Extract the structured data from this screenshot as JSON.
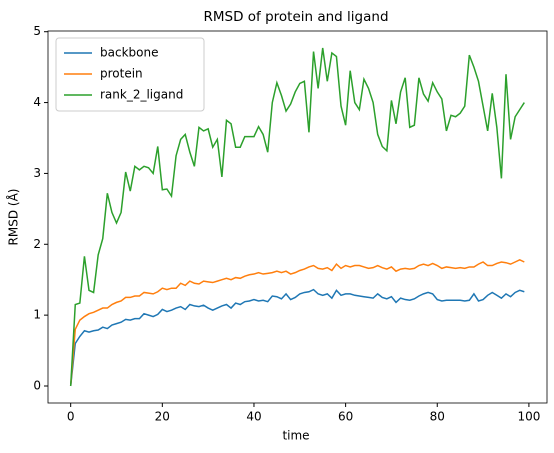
{
  "chart_data": {
    "type": "line",
    "title": "RMSD of protein and ligand",
    "xlabel": "time",
    "ylabel": "RMSD (Å)",
    "x": [
      0,
      1,
      2,
      3,
      4,
      5,
      6,
      7,
      8,
      9,
      10,
      11,
      12,
      13,
      14,
      15,
      16,
      17,
      18,
      19,
      20,
      21,
      22,
      23,
      24,
      25,
      26,
      27,
      28,
      29,
      30,
      31,
      32,
      33,
      34,
      35,
      36,
      37,
      38,
      39,
      40,
      41,
      42,
      43,
      44,
      45,
      46,
      47,
      48,
      49,
      50,
      51,
      52,
      53,
      54,
      55,
      56,
      57,
      58,
      59,
      60,
      61,
      62,
      63,
      64,
      65,
      66,
      67,
      68,
      69,
      70,
      71,
      72,
      73,
      74,
      75,
      76,
      77,
      78,
      79,
      80,
      81,
      82,
      83,
      84,
      85,
      86,
      87,
      88,
      89,
      90,
      91,
      92,
      93,
      94,
      95,
      96,
      97,
      98,
      99
    ],
    "series": [
      {
        "name": "backbone",
        "color": "#1f77b4",
        "values": [
          0,
          0.6,
          0.7,
          0.78,
          0.76,
          0.78,
          0.79,
          0.83,
          0.81,
          0.86,
          0.88,
          0.9,
          0.94,
          0.93,
          0.95,
          0.95,
          1.02,
          1.0,
          0.98,
          1.01,
          1.08,
          1.05,
          1.07,
          1.1,
          1.12,
          1.08,
          1.15,
          1.13,
          1.12,
          1.14,
          1.1,
          1.07,
          1.1,
          1.13,
          1.15,
          1.1,
          1.17,
          1.15,
          1.19,
          1.2,
          1.22,
          1.2,
          1.21,
          1.19,
          1.27,
          1.26,
          1.23,
          1.3,
          1.22,
          1.25,
          1.3,
          1.32,
          1.33,
          1.36,
          1.3,
          1.28,
          1.3,
          1.24,
          1.35,
          1.28,
          1.3,
          1.3,
          1.28,
          1.27,
          1.26,
          1.25,
          1.24,
          1.3,
          1.25,
          1.23,
          1.26,
          1.18,
          1.24,
          1.22,
          1.21,
          1.23,
          1.27,
          1.3,
          1.32,
          1.3,
          1.22,
          1.2,
          1.21,
          1.21,
          1.21,
          1.21,
          1.2,
          1.21,
          1.3,
          1.2,
          1.22,
          1.28,
          1.32,
          1.28,
          1.24,
          1.3,
          1.26,
          1.32,
          1.35,
          1.33
        ]
      },
      {
        "name": "protein",
        "color": "#ff7f0e",
        "values": [
          0,
          0.8,
          0.93,
          0.98,
          1.02,
          1.04,
          1.07,
          1.1,
          1.1,
          1.15,
          1.18,
          1.2,
          1.25,
          1.25,
          1.27,
          1.27,
          1.32,
          1.31,
          1.3,
          1.33,
          1.38,
          1.36,
          1.38,
          1.38,
          1.45,
          1.42,
          1.48,
          1.45,
          1.44,
          1.48,
          1.47,
          1.46,
          1.48,
          1.5,
          1.52,
          1.5,
          1.53,
          1.52,
          1.55,
          1.57,
          1.58,
          1.6,
          1.58,
          1.59,
          1.6,
          1.62,
          1.6,
          1.62,
          1.58,
          1.6,
          1.63,
          1.65,
          1.68,
          1.7,
          1.66,
          1.65,
          1.67,
          1.63,
          1.72,
          1.66,
          1.7,
          1.68,
          1.7,
          1.7,
          1.68,
          1.66,
          1.67,
          1.7,
          1.67,
          1.65,
          1.68,
          1.62,
          1.65,
          1.66,
          1.65,
          1.66,
          1.7,
          1.72,
          1.7,
          1.73,
          1.7,
          1.66,
          1.68,
          1.67,
          1.66,
          1.67,
          1.66,
          1.68,
          1.68,
          1.72,
          1.75,
          1.7,
          1.7,
          1.73,
          1.75,
          1.74,
          1.72,
          1.75,
          1.78,
          1.75
        ]
      },
      {
        "name": "rank_2_ligand",
        "color": "#2ca02c",
        "values": [
          0,
          1.15,
          1.17,
          1.83,
          1.35,
          1.32,
          1.85,
          2.08,
          2.72,
          2.45,
          2.3,
          2.45,
          3.02,
          2.75,
          3.1,
          3.05,
          3.1,
          3.08,
          3.0,
          3.38,
          2.77,
          2.78,
          2.68,
          3.25,
          3.48,
          3.55,
          3.3,
          3.1,
          3.65,
          3.6,
          3.63,
          3.37,
          3.48,
          2.95,
          3.75,
          3.7,
          3.37,
          3.37,
          3.52,
          3.52,
          3.52,
          3.66,
          3.55,
          3.3,
          4.0,
          4.28,
          4.1,
          3.88,
          3.98,
          4.15,
          4.27,
          4.3,
          3.58,
          4.72,
          4.2,
          4.77,
          4.3,
          4.7,
          4.65,
          3.95,
          3.68,
          4.45,
          4.0,
          3.9,
          4.33,
          4.2,
          4.0,
          3.55,
          3.38,
          3.32,
          4.03,
          3.7,
          4.15,
          4.35,
          3.65,
          3.68,
          4.35,
          4.12,
          4.02,
          4.28,
          4.15,
          4.05,
          3.6,
          3.82,
          3.8,
          3.85,
          3.95,
          4.67,
          4.5,
          4.3,
          3.95,
          3.6,
          4.13,
          3.65,
          2.93,
          4.4,
          3.48,
          3.8,
          3.9,
          4.0
        ]
      }
    ],
    "xlim": [
      -4.95,
      103.95
    ],
    "xticks": [
      0,
      20,
      40,
      60,
      80,
      100
    ],
    "ylim": [
      -0.24,
      5.01
    ],
    "yticks": [
      0,
      1,
      2,
      3,
      4,
      5
    ],
    "legend": "upper left"
  }
}
